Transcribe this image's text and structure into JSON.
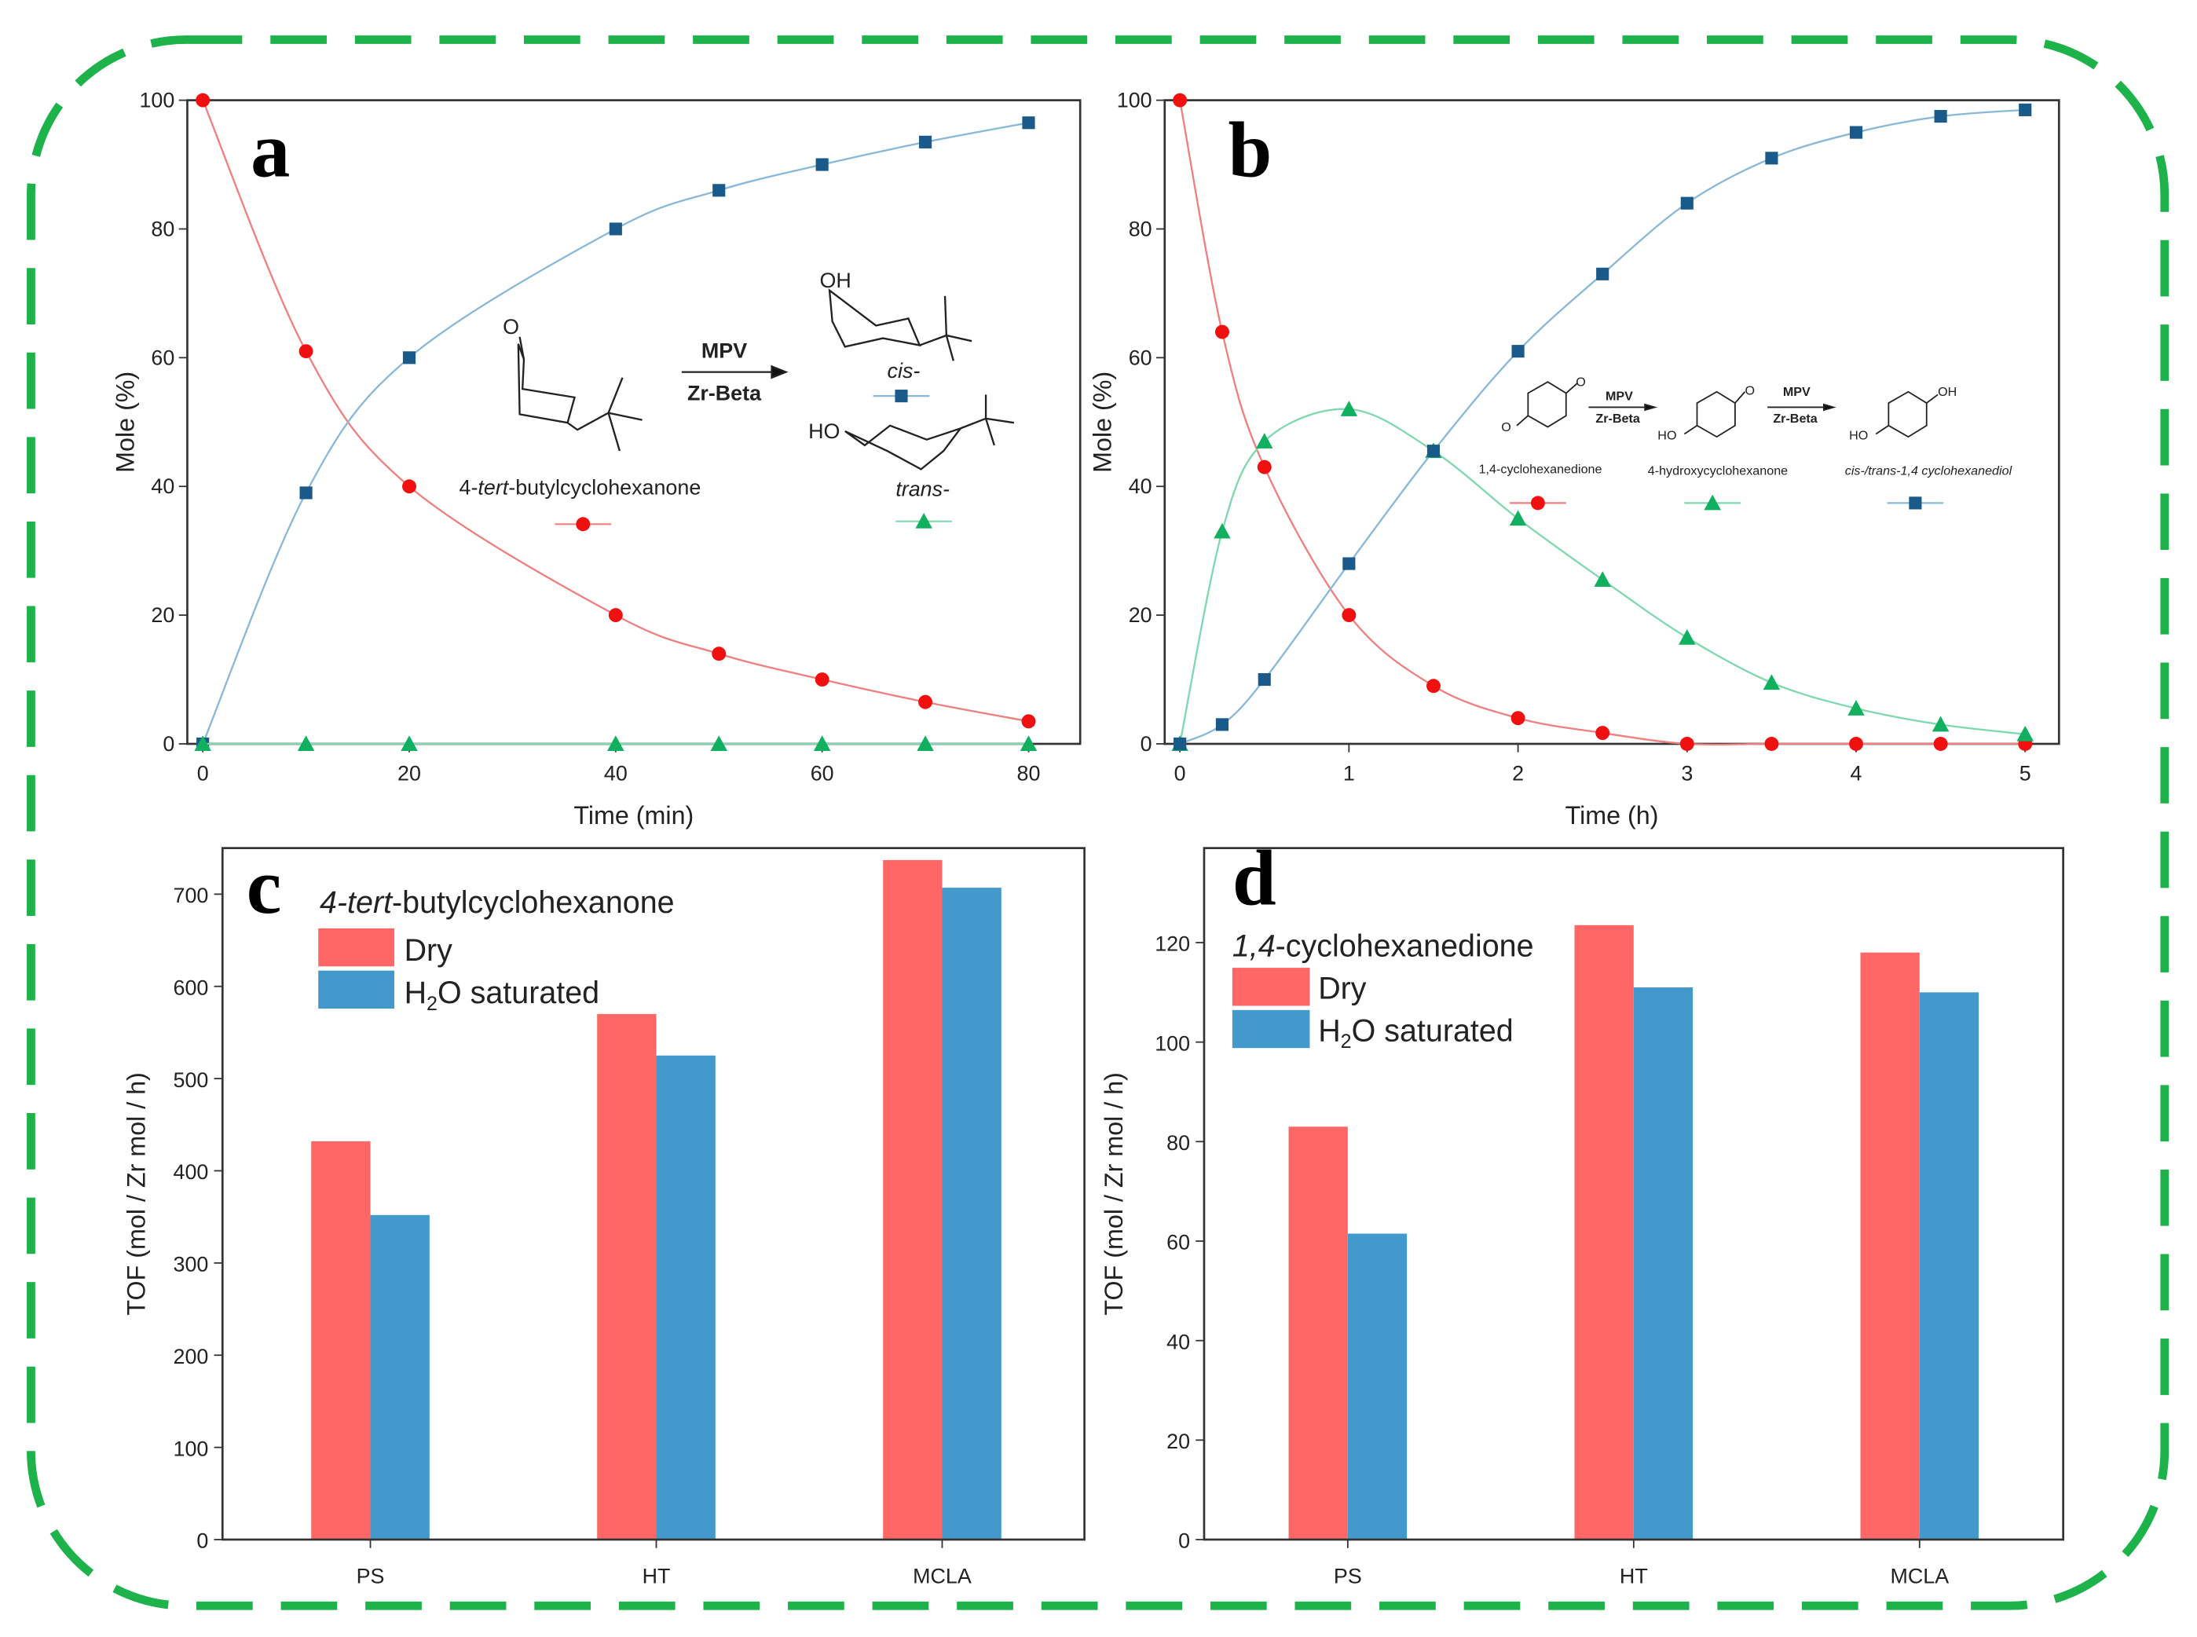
{
  "chart_data": [
    {
      "panel": "a",
      "type": "scatter",
      "xlabel": "Time (min)",
      "ylabel": "Mole (%)",
      "xlim": [
        -1.5,
        85
      ],
      "ylim": [
        0,
        100
      ],
      "xticks": [
        0,
        20,
        40,
        60,
        80
      ],
      "yticks": [
        0,
        20,
        40,
        60,
        80,
        100
      ],
      "scheme": {
        "reactant": "4-tert-butylcyclohexanone",
        "reactant_prefix": "4-",
        "reactant_italic": "tert",
        "reactant_suffix": "-butylcyclohexanone",
        "arrow_top": "MPV",
        "arrow_bottom": "Zr-Beta",
        "product1": "cis-",
        "product2": "trans-",
        "oh": "OH",
        "ho": "HO",
        "o": "O"
      },
      "series": [
        {
          "name": "4-tert-butylcyclohexanone",
          "marker": "circle",
          "color": "#f01010",
          "line": "#f08080",
          "x": [
            0,
            10,
            20,
            40,
            50,
            60,
            70,
            80
          ],
          "y": [
            100,
            61,
            40,
            20,
            14,
            10,
            6.5,
            3.5
          ]
        },
        {
          "name": "cis-",
          "marker": "square",
          "color": "#1a5a8a",
          "line": "#8ab8d8",
          "x": [
            0,
            10,
            20,
            40,
            50,
            60,
            70,
            80
          ],
          "y": [
            0,
            39,
            60,
            80,
            86,
            90,
            93.5,
            96.5
          ]
        },
        {
          "name": "trans-",
          "marker": "triangle",
          "color": "#10b060",
          "line": "#80d8b0",
          "x": [
            0,
            10,
            20,
            40,
            50,
            60,
            70,
            80
          ],
          "y": [
            0,
            0,
            0,
            0,
            0,
            0,
            0,
            0
          ]
        }
      ]
    },
    {
      "panel": "b",
      "type": "scatter",
      "xlabel": "Time (h)",
      "ylabel": "Mole (%)",
      "xlim": [
        -0.09,
        5.2
      ],
      "ylim": [
        0,
        100
      ],
      "xticks": [
        0,
        1,
        2,
        3,
        4,
        5
      ],
      "yticks": [
        0,
        20,
        40,
        60,
        80,
        100
      ],
      "scheme": {
        "compound1": "1,4-cyclohexanedione",
        "compound2": "4-hydroxycyclohexanone",
        "compound3": "cis-/trans-1,4 cyclohexanediol",
        "arrow_top": "MPV",
        "arrow_bottom": "Zr-Beta",
        "oh": "OH",
        "ho": "HO",
        "o": "O"
      },
      "series": [
        {
          "name": "1,4-cyclohexanedione",
          "marker": "circle",
          "color": "#f01010",
          "line": "#f08080",
          "x": [
            0,
            0.25,
            0.5,
            1,
            1.5,
            2,
            2.5,
            3,
            3.5,
            4,
            4.5,
            5
          ],
          "y": [
            100,
            64,
            43,
            20,
            9,
            4,
            1.7,
            0,
            0,
            0,
            0,
            0
          ]
        },
        {
          "name": "4-hydroxycyclohexanone",
          "marker": "triangle",
          "color": "#10b060",
          "line": "#80d8b0",
          "x": [
            0,
            0.25,
            0.5,
            1,
            1.5,
            2,
            2.5,
            3,
            3.5,
            4,
            4.5,
            5
          ],
          "y": [
            0,
            33,
            47,
            52,
            45.5,
            35,
            25.5,
            16.5,
            9.5,
            5.5,
            3,
            1.5
          ]
        },
        {
          "name": "cis-/trans-1,4 cyclohexanediol",
          "marker": "square",
          "color": "#1a5a8a",
          "line": "#8ab8d8",
          "x": [
            0,
            0.25,
            0.5,
            1,
            1.5,
            2,
            2.5,
            3,
            3.5,
            4,
            4.5,
            5
          ],
          "y": [
            0,
            3,
            10,
            28,
            45.5,
            61,
            73,
            84,
            91,
            95,
            97.5,
            98.5
          ]
        }
      ]
    },
    {
      "panel": "c",
      "type": "bar",
      "title_italic": "4-tert",
      "title_rest": "-butylcyclohexanone",
      "ylabel": "TOF (mol / Zr mol / h)",
      "ylim": [
        0,
        750
      ],
      "yticks": [
        0,
        100,
        200,
        300,
        400,
        500,
        600,
        700
      ],
      "categories": [
        "PS",
        "HT",
        "MCLA"
      ],
      "series": [
        {
          "name": "Dry",
          "color": "#ff6666",
          "values": [
            432,
            570,
            737
          ]
        },
        {
          "name": "H2O saturated",
          "label_pre": "H",
          "label_sub": "2",
          "label_post": "O saturated",
          "color": "#4499cc",
          "values": [
            352,
            525,
            707
          ]
        }
      ]
    },
    {
      "panel": "d",
      "type": "bar",
      "title_italic": "1,4",
      "title_rest": "-cyclohexanedione",
      "ylabel": "TOF (mol / Zr mol / h)",
      "ylim": [
        0,
        139
      ],
      "yticks": [
        0,
        20,
        40,
        60,
        80,
        100,
        120
      ],
      "categories": [
        "PS",
        "HT",
        "MCLA"
      ],
      "series": [
        {
          "name": "Dry",
          "color": "#ff6666",
          "values": [
            83,
            123.5,
            118
          ]
        },
        {
          "name": "H2O saturated",
          "label_pre": "H",
          "label_sub": "2",
          "label_post": "O saturated",
          "color": "#4499cc",
          "values": [
            61.5,
            111,
            110
          ]
        }
      ]
    }
  ],
  "frame_color": "#1db34a"
}
